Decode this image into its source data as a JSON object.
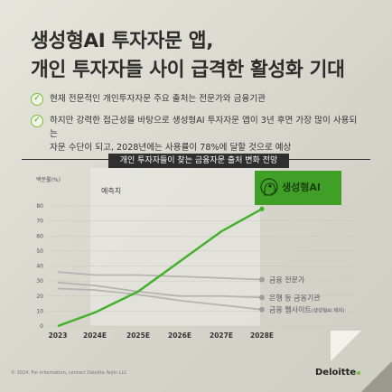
{
  "headline": {
    "line1": "생성형AI 투자자문 앱,",
    "line2": "개인 투자자들 사이 급격한 활성화 기대"
  },
  "bullets": [
    {
      "text": "현재 전문적인 개인투자자문 주요 출처는 전문가와 금융기관"
    },
    {
      "text_line1": "하지만 강력한 접근성을 바탕으로 생성형AI 투자자문 앱이 3년 후면 가장 많이 사용되는",
      "text_line2": "자문 수단이 되고, 2028년에는 사용률이 78%에 달할 것으로 예상"
    }
  ],
  "chart_title": "개인 투자자들이 찾는 금융자문 출처 변화 전망",
  "chart_data": {
    "type": "line",
    "ylabel": "백분률(%)",
    "ylim": [
      0,
      80
    ],
    "yticks": [
      0,
      10,
      20,
      30,
      40,
      50,
      60,
      70,
      80
    ],
    "categories": [
      "2023",
      "2024E",
      "2025E",
      "2026E",
      "2027E",
      "2028E"
    ],
    "forecast_label": "예측치",
    "series": [
      {
        "name": "생성형AI",
        "values": [
          0,
          9,
          23,
          43,
          63,
          78
        ],
        "color": "#43b02a"
      },
      {
        "name": "금융 전문가",
        "values": [
          36,
          34,
          34,
          33,
          32,
          31
        ],
        "color": "#b5b5b0"
      },
      {
        "name": "은행 등 금융기관",
        "values": [
          29,
          27,
          23,
          20,
          20,
          19
        ],
        "color": "#b5b5b0"
      },
      {
        "name": "금융 웹사이트",
        "name_note": "(생성형AI 제외)",
        "values": [
          25,
          24,
          21,
          17,
          14,
          11
        ],
        "color": "#b5b5b0"
      }
    ]
  },
  "footer": {
    "copyright": "© 2024. For information, contact Deloitte Anjin LLC",
    "logo": "Deloitte"
  }
}
